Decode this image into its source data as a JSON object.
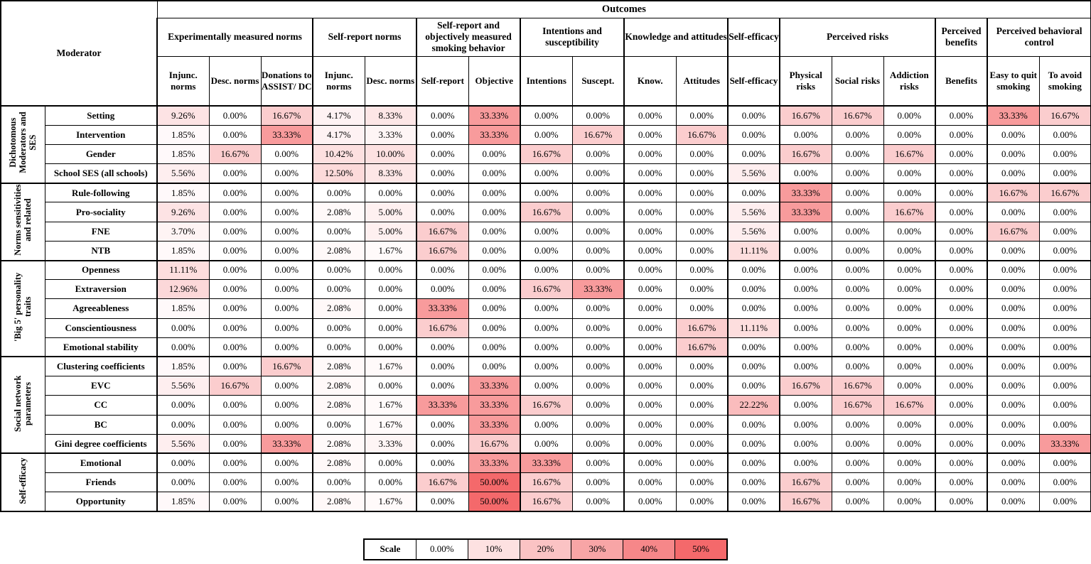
{
  "chart_data": {
    "type": "heatmap",
    "top_axis_label": "Outcomes",
    "corner_label": "Moderator",
    "value_unit": "percent",
    "color_scale": {
      "min": 0,
      "max": 50,
      "min_color": "#ffffff",
      "max_color": "#f4696b"
    },
    "column_groups": [
      {
        "label": "Experimentally measured norms",
        "span": 3
      },
      {
        "label": "Self-report norms",
        "span": 2
      },
      {
        "label": "Self-report and objectively measured smoking behavior",
        "span": 2
      },
      {
        "label": "Intentions and susceptibility",
        "span": 2
      },
      {
        "label": "Knowledge and attitudes",
        "span": 2
      },
      {
        "label": "Self-efficacy",
        "span": 1
      },
      {
        "label": "Perceived risks",
        "span": 3
      },
      {
        "label": "Perceived benefits",
        "span": 1
      },
      {
        "label": "Perceived behavioral control",
        "span": 2
      }
    ],
    "columns": [
      "Injunc. norms",
      "Desc. norms",
      "Donations to ASSIST/ DC",
      "Injunc. norms",
      "Desc. norms",
      "Self-report",
      "Objective",
      "Intentions",
      "Suscept.",
      "Know.",
      "Attitudes",
      "Self-efficacy",
      "Physical risks",
      "Social risks",
      "Addiction risks",
      "Benefits",
      "Easy to quit smoking",
      "To avoid smoking"
    ],
    "row_groups": [
      {
        "label": "Dichotomous Moderators and SES",
        "rows": [
          {
            "label": "Setting",
            "values": [
              9.26,
              0,
              16.67,
              4.17,
              8.33,
              0,
              33.33,
              0,
              0,
              0,
              0,
              0,
              16.67,
              16.67,
              0,
              0,
              33.33,
              16.67
            ]
          },
          {
            "label": "Intervention",
            "values": [
              1.85,
              0,
              33.33,
              4.17,
              3.33,
              0,
              33.33,
              0,
              16.67,
              0,
              16.67,
              0,
              0,
              0,
              0,
              0,
              0,
              0
            ]
          },
          {
            "label": "Gender",
            "values": [
              1.85,
              16.67,
              0,
              10.42,
              10.0,
              0,
              0,
              16.67,
              0,
              0,
              0,
              0,
              16.67,
              0,
              16.67,
              0,
              0,
              0
            ]
          },
          {
            "label": "School SES (all schools)",
            "values": [
              5.56,
              0,
              0,
              12.5,
              8.33,
              0,
              0,
              0,
              0,
              0,
              0,
              5.56,
              0,
              0,
              0,
              0,
              0,
              0
            ]
          }
        ]
      },
      {
        "label": "Norms sensitivities and related",
        "rows": [
          {
            "label": "Rule-following",
            "values": [
              1.85,
              0,
              0,
              0,
              0,
              0,
              0,
              0,
              0,
              0,
              0,
              0,
              33.33,
              0,
              0,
              0,
              16.67,
              16.67
            ]
          },
          {
            "label": "Pro-sociality",
            "values": [
              9.26,
              0,
              0,
              2.08,
              5.0,
              0,
              0,
              16.67,
              0,
              0,
              0,
              5.56,
              33.33,
              0,
              16.67,
              0,
              0,
              0
            ]
          },
          {
            "label": "FNE",
            "values": [
              3.7,
              0,
              0,
              0,
              5.0,
              16.67,
              0,
              0,
              0,
              0,
              0,
              5.56,
              0,
              0,
              0,
              0,
              16.67,
              0
            ]
          },
          {
            "label": "NTB",
            "values": [
              1.85,
              0,
              0,
              2.08,
              1.67,
              16.67,
              0,
              0,
              0,
              0,
              0,
              11.11,
              0,
              0,
              0,
              0,
              0,
              0
            ]
          }
        ]
      },
      {
        "label": "'Big 5' personality traits",
        "rows": [
          {
            "label": "Openness",
            "values": [
              11.11,
              0,
              0,
              0,
              0,
              0,
              0,
              0,
              0,
              0,
              0,
              0,
              0,
              0,
              0,
              0,
              0,
              0
            ]
          },
          {
            "label": "Extraversion",
            "values": [
              12.96,
              0,
              0,
              0,
              0,
              0,
              0,
              16.67,
              33.33,
              0,
              0,
              0,
              0,
              0,
              0,
              0,
              0,
              0
            ]
          },
          {
            "label": "Agreeableness",
            "values": [
              1.85,
              0,
              0,
              2.08,
              0,
              33.33,
              0,
              0,
              0,
              0,
              0,
              0,
              0,
              0,
              0,
              0,
              0,
              0
            ]
          },
          {
            "label": "Conscientiousness",
            "values": [
              0,
              0,
              0,
              0,
              0,
              16.67,
              0,
              0,
              0,
              0,
              16.67,
              11.11,
              0,
              0,
              0,
              0,
              0,
              0
            ]
          },
          {
            "label": "Emotional stability",
            "values": [
              0,
              0,
              0,
              0,
              0,
              0,
              0,
              0,
              0,
              0,
              16.67,
              0,
              0,
              0,
              0,
              0,
              0,
              0
            ]
          }
        ]
      },
      {
        "label": "Social network parameters",
        "rows": [
          {
            "label": "Clustering coefficients",
            "values": [
              1.85,
              0,
              16.67,
              2.08,
              1.67,
              0,
              0,
              0,
              0,
              0,
              0,
              0,
              0,
              0,
              0,
              0,
              0,
              0
            ]
          },
          {
            "label": "EVC",
            "values": [
              5.56,
              16.67,
              0,
              2.08,
              0,
              0,
              33.33,
              0,
              0,
              0,
              0,
              0,
              16.67,
              16.67,
              0,
              0,
              0,
              0
            ]
          },
          {
            "label": "CC",
            "values": [
              0,
              0,
              0,
              2.08,
              1.67,
              33.33,
              33.33,
              16.67,
              0,
              0,
              0,
              22.22,
              0,
              16.67,
              16.67,
              0,
              0,
              0
            ]
          },
          {
            "label": "BC",
            "values": [
              0,
              0,
              0,
              0,
              1.67,
              0,
              33.33,
              0,
              0,
              0,
              0,
              0,
              0,
              0,
              0,
              0,
              0,
              0
            ]
          },
          {
            "label": "Gini degree coefficients",
            "values": [
              5.56,
              0,
              33.33,
              2.08,
              3.33,
              0,
              16.67,
              0,
              0,
              0,
              0,
              0,
              0,
              0,
              0,
              0,
              0,
              33.33
            ]
          }
        ]
      },
      {
        "label": "Self-efficacy",
        "rows": [
          {
            "label": "Emotional",
            "values": [
              0,
              0,
              0,
              2.08,
              0,
              0,
              33.33,
              33.33,
              0,
              0,
              0,
              0,
              0,
              0,
              0,
              0,
              0,
              0
            ]
          },
          {
            "label": "Friends",
            "values": [
              0,
              0,
              0,
              0,
              0,
              16.67,
              50.0,
              16.67,
              0,
              0,
              0,
              0,
              16.67,
              0,
              0,
              0,
              0,
              0
            ]
          },
          {
            "label": "Opportunity",
            "values": [
              1.85,
              0,
              0,
              2.08,
              1.67,
              0,
              50.0,
              16.67,
              0,
              0,
              0,
              0,
              16.67,
              0,
              0,
              0,
              0,
              0
            ]
          }
        ]
      }
    ],
    "legend": {
      "label": "Scale",
      "stops": [
        {
          "label": "0.00%",
          "value": 0
        },
        {
          "label": "10%",
          "value": 10
        },
        {
          "label": "20%",
          "value": 20
        },
        {
          "label": "30%",
          "value": 30
        },
        {
          "label": "40%",
          "value": 40
        },
        {
          "label": "50%",
          "value": 50
        }
      ]
    }
  }
}
